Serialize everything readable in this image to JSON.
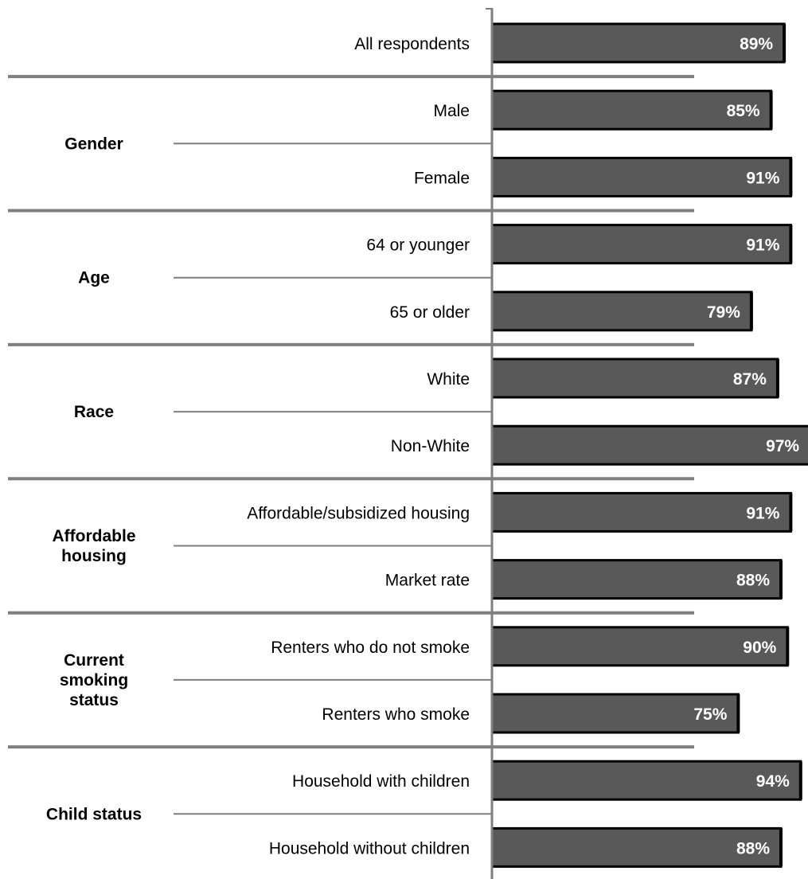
{
  "colors": {
    "bar_fill": "#595959",
    "bar_border": "#000000",
    "separator": "#7f7f7f",
    "axis": "#7f7f7f"
  },
  "chart_data": {
    "type": "bar",
    "orientation": "horizontal",
    "xlim": [
      0,
      100
    ],
    "unit": "%",
    "grid": false,
    "legend": "none",
    "groups": [
      {
        "name": "",
        "rows": [
          {
            "label": "All respondents",
            "value": 89,
            "value_label": "89%"
          }
        ]
      },
      {
        "name": "Gender",
        "rows": [
          {
            "label": "Male",
            "value": 85,
            "value_label": "85%"
          },
          {
            "label": "Female",
            "value": 91,
            "value_label": "91%"
          }
        ]
      },
      {
        "name": "Age",
        "rows": [
          {
            "label": "64 or younger",
            "value": 91,
            "value_label": "91%"
          },
          {
            "label": "65 or older",
            "value": 79,
            "value_label": "79%"
          }
        ]
      },
      {
        "name": "Race",
        "rows": [
          {
            "label": "White",
            "value": 87,
            "value_label": "87%"
          },
          {
            "label": "Non-White",
            "value": 97,
            "value_label": "97%"
          }
        ]
      },
      {
        "name": "Affordable housing",
        "rows": [
          {
            "label": "Affordable/subsidized  housing",
            "value": 91,
            "value_label": "91%"
          },
          {
            "label": "Market rate",
            "value": 88,
            "value_label": "88%"
          }
        ]
      },
      {
        "name": "Current smoking status",
        "rows": [
          {
            "label": "Renters who  do not smoke",
            "value": 90,
            "value_label": "90%"
          },
          {
            "label": "Renters who  smoke",
            "value": 75,
            "value_label": "75%"
          }
        ]
      },
      {
        "name": "Child status",
        "rows": [
          {
            "label": "Household with children",
            "value": 94,
            "value_label": "94%"
          },
          {
            "label": "Household without children",
            "value": 88,
            "value_label": "88%"
          }
        ]
      }
    ]
  }
}
